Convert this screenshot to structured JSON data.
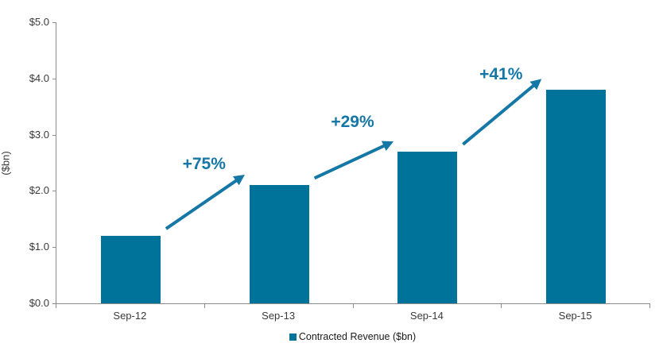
{
  "chart_data": {
    "type": "bar",
    "categories": [
      "Sep-12",
      "Sep-13",
      "Sep-14",
      "Sep-15"
    ],
    "values": [
      1.2,
      2.1,
      2.7,
      3.8
    ],
    "series_name": "Contracted Revenue ($bn)",
    "title": "",
    "xlabel": "",
    "ylabel": "($bn)",
    "ylim": [
      0,
      5
    ],
    "ytick_step": 1.0,
    "ytick_labels": [
      "$0.0",
      "$1.0",
      "$2.0",
      "$3.0",
      "$4.0",
      "$5.0"
    ],
    "grid": false,
    "legend_position": "bottom",
    "growth_annotations": [
      {
        "from": "Sep-12",
        "to": "Sep-13",
        "label": "+75%"
      },
      {
        "from": "Sep-13",
        "to": "Sep-14",
        "label": "+29%"
      },
      {
        "from": "Sep-14",
        "to": "Sep-15",
        "label": "+41%"
      }
    ],
    "colors": {
      "bar": "#00739a",
      "annotation": "#1577a6",
      "axis": "#8c8c8c",
      "tick_label": "#3a3a3a",
      "background": "#ffffff"
    }
  },
  "legend": {
    "label": "Contracted Revenue ($bn)"
  }
}
